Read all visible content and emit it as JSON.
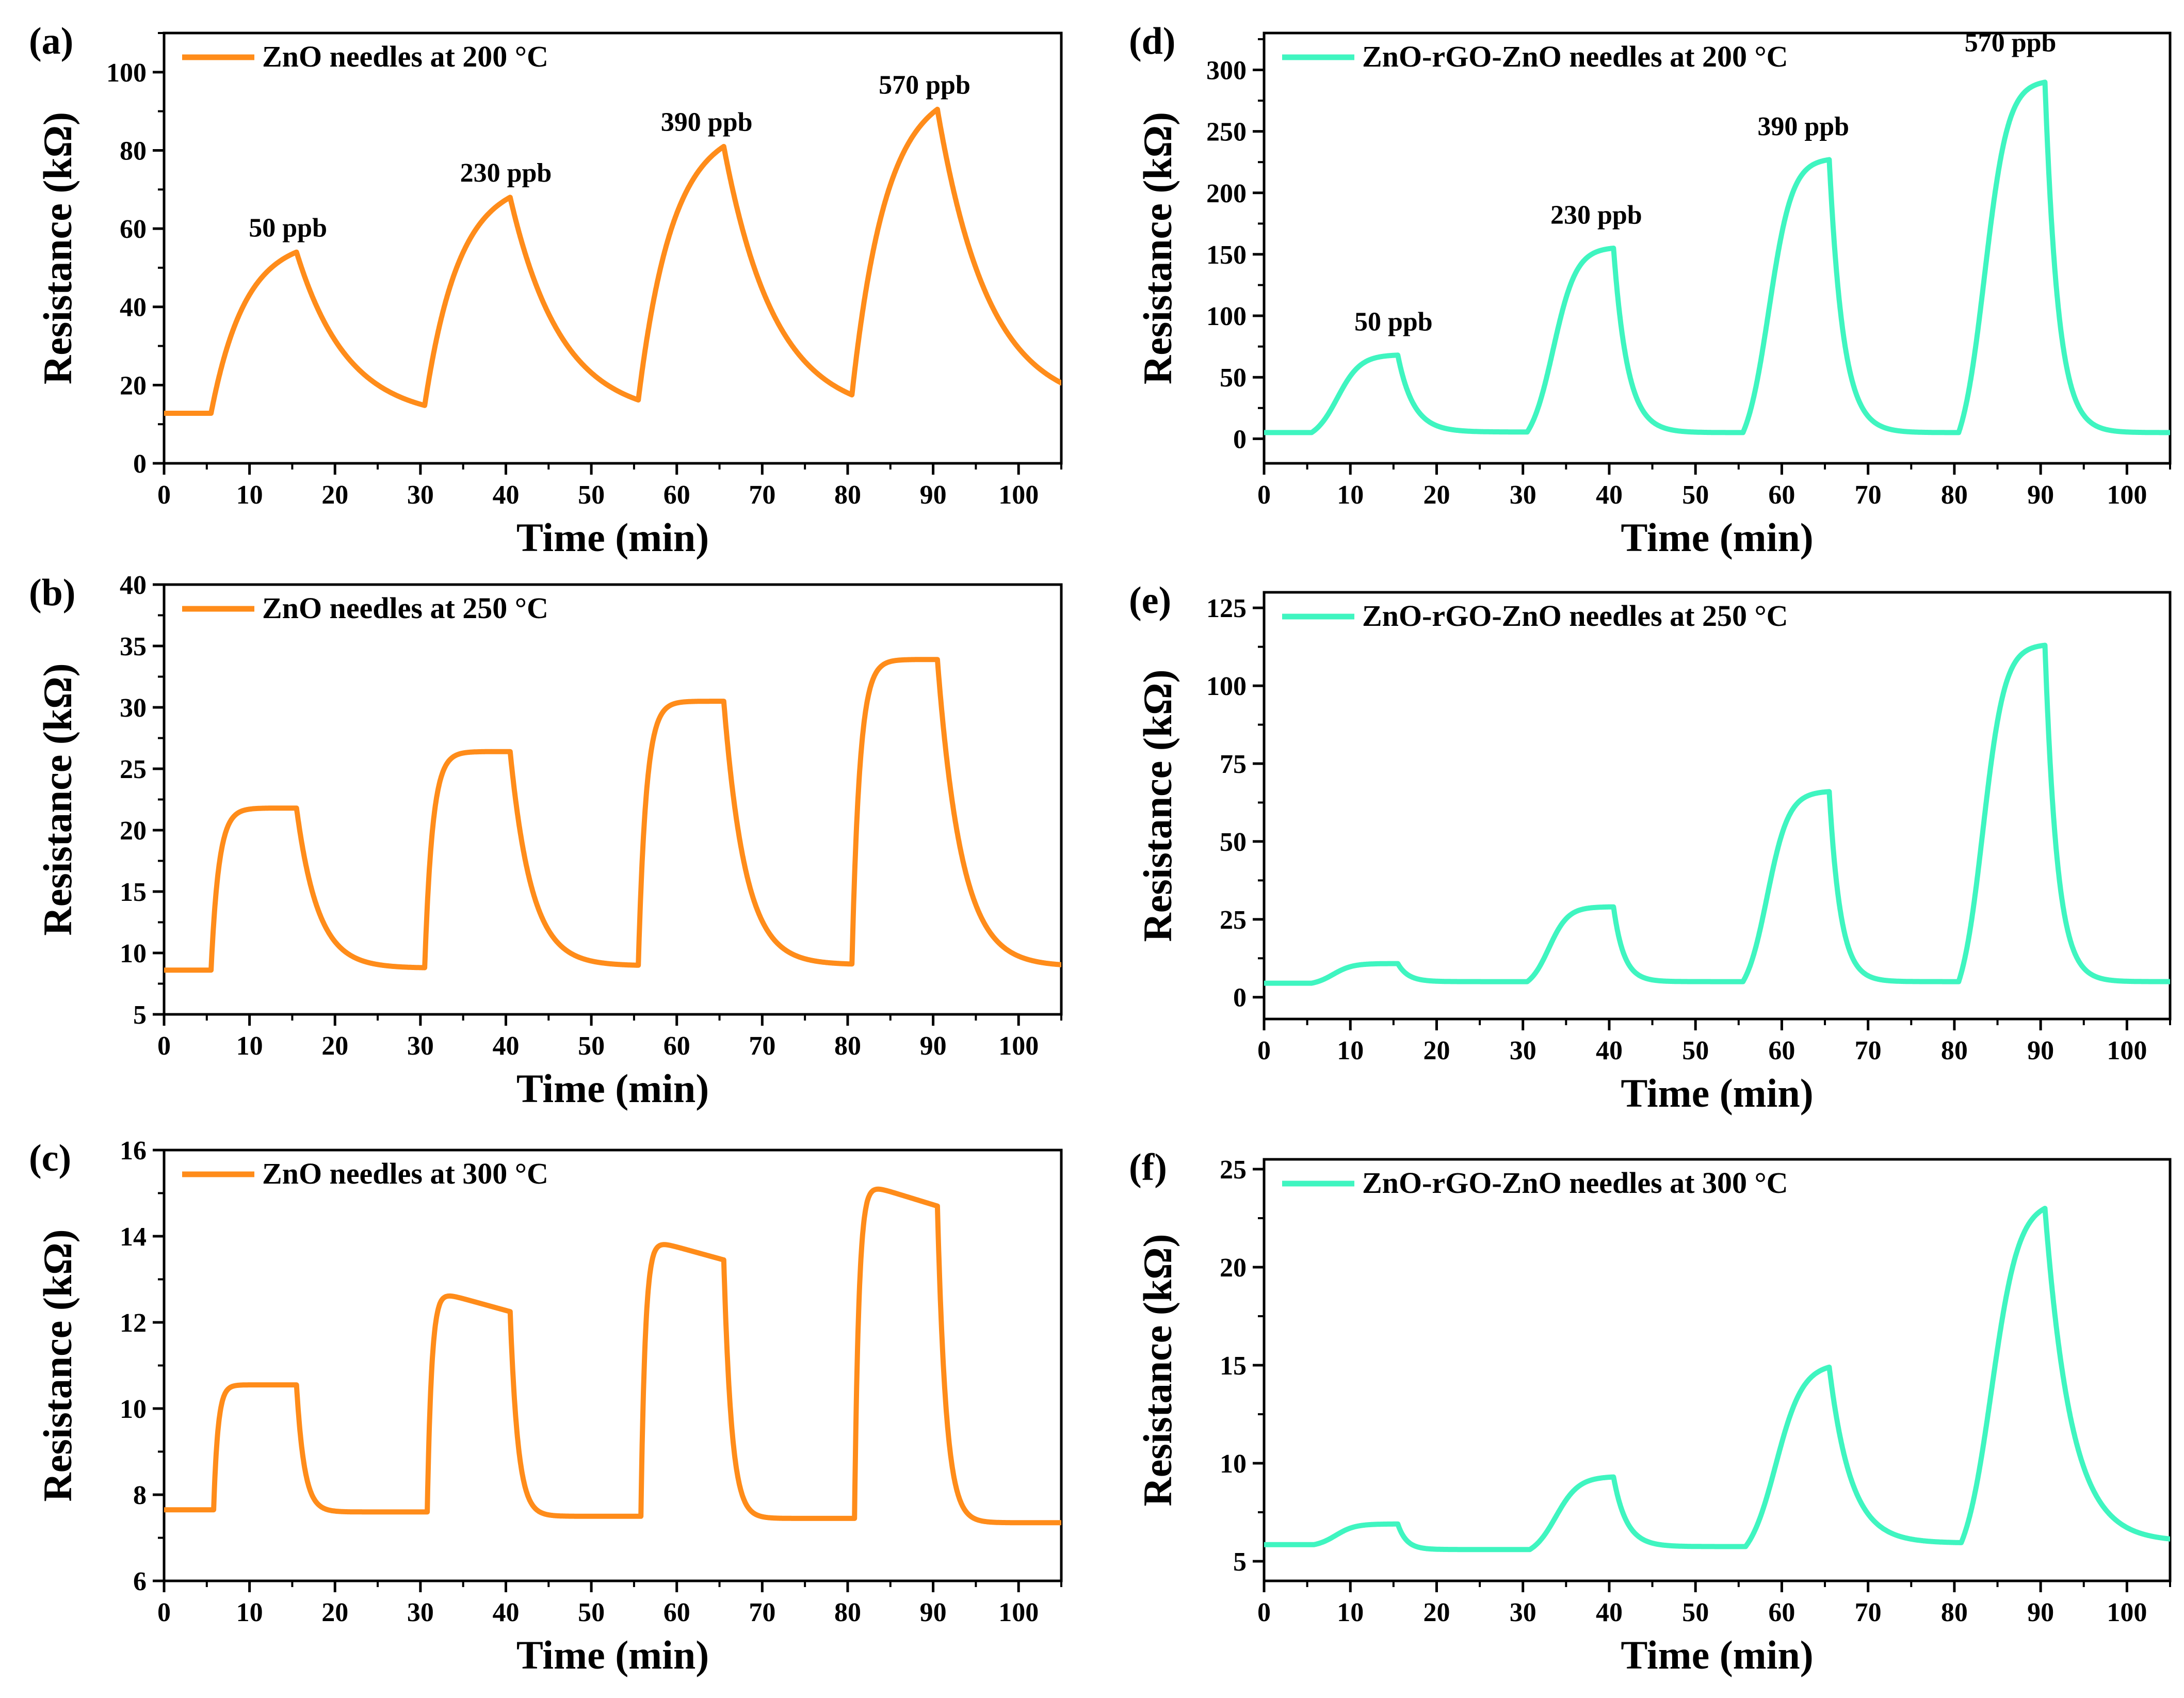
{
  "colors": {
    "zno": "#ff8c1a",
    "rgo": "#3ff5c0"
  },
  "chart_data": [
    {
      "type": "line",
      "panel_label": "(a)",
      "legend": "ZnO needles at 200 °C",
      "color": "#ff8c1a",
      "xlabel": "Time (min)",
      "ylabel": "Resistance (kΩ)",
      "xlim": [
        0,
        105
      ],
      "ylim": [
        0,
        110
      ],
      "xticks": [
        0,
        10,
        20,
        30,
        40,
        50,
        60,
        70,
        80,
        90,
        100
      ],
      "yticks": [
        0,
        20,
        40,
        60,
        80,
        100
      ],
      "baseline": 12.8,
      "pulses": [
        {
          "on": 5.5,
          "off": 15.5,
          "start": 12.8,
          "peak": 54,
          "shape": "exp",
          "tauRise": 4,
          "tauFall": 6,
          "end": 14.8
        },
        {
          "on": 30.5,
          "off": 40.5,
          "start": 14.8,
          "peak": 68,
          "shape": "exp",
          "tauRise": 4,
          "tauFall": 6,
          "end": 16.2
        },
        {
          "on": 55.5,
          "off": 65.5,
          "start": 16.2,
          "peak": 81,
          "shape": "exp",
          "tauRise": 4,
          "tauFall": 6,
          "end": 17.5
        },
        {
          "on": 80.5,
          "off": 90.5,
          "start": 17.5,
          "peak": 90.5,
          "shape": "exp",
          "tauRise": 4,
          "tauFall": 6,
          "end": 19.5
        }
      ],
      "end_time": 105,
      "annotations": [
        {
          "text": "50 ppb",
          "x": 14.5,
          "y": 58
        },
        {
          "text": "230 ppb",
          "x": 40,
          "y": 72
        },
        {
          "text": "390 ppb",
          "x": 63.5,
          "y": 85
        },
        {
          "text": "570 ppb",
          "x": 89,
          "y": 94.5
        }
      ]
    },
    {
      "type": "line",
      "panel_label": "(b)",
      "legend": "ZnO needles at 250 °C",
      "color": "#ff8c1a",
      "xlabel": "Time (min)",
      "ylabel": "Resistance (kΩ)",
      "xlim": [
        0,
        105
      ],
      "ylim": [
        5,
        40
      ],
      "xticks": [
        0,
        10,
        20,
        30,
        40,
        50,
        60,
        70,
        80,
        90,
        100
      ],
      "yticks": [
        5,
        10,
        15,
        20,
        25,
        30,
        35,
        40
      ],
      "baseline": 8.6,
      "pulses": [
        {
          "on": 5.5,
          "off": 15.5,
          "start": 8.6,
          "peak": 21.8,
          "shape": "plateau",
          "tauRise": 0.9,
          "tauFall": 2.5,
          "end": 8.8
        },
        {
          "on": 30.5,
          "off": 40.5,
          "start": 8.8,
          "peak": 26.4,
          "shape": "plateau",
          "tauRise": 0.9,
          "tauFall": 2.5,
          "end": 9.0
        },
        {
          "on": 55.5,
          "off": 65.5,
          "start": 9.0,
          "peak": 30.5,
          "shape": "plateau",
          "tauRise": 0.9,
          "tauFall": 2.5,
          "end": 9.1
        },
        {
          "on": 80.5,
          "off": 90.5,
          "start": 9.1,
          "peak": 33.9,
          "shape": "plateau",
          "tauRise": 0.9,
          "tauFall": 2.8,
          "end": 9.0
        }
      ],
      "end_time": 105,
      "annotations": []
    },
    {
      "type": "line",
      "panel_label": "(c)",
      "legend": "ZnO needles at 300 °C",
      "color": "#ff8c1a",
      "xlabel": "Time (min)",
      "ylabel": "Resistance (kΩ)",
      "xlim": [
        0,
        105
      ],
      "ylim": [
        6,
        16
      ],
      "xticks": [
        0,
        10,
        20,
        30,
        40,
        50,
        60,
        70,
        80,
        90,
        100
      ],
      "yticks": [
        6,
        8,
        10,
        12,
        14,
        16
      ],
      "baseline": 7.65,
      "pulses": [
        {
          "on": 5.8,
          "off": 15.5,
          "start": 7.65,
          "peak": 10.55,
          "shape": "plateau",
          "tauRise": 0.5,
          "tauFall": 0.9,
          "end": 7.6
        },
        {
          "on": 30.8,
          "off": 40.5,
          "start": 7.6,
          "peak": 12.7,
          "peakEnd": 12.25,
          "shape": "plateau",
          "tauRise": 0.5,
          "tauFall": 0.9,
          "end": 7.5
        },
        {
          "on": 55.8,
          "off": 65.5,
          "start": 7.5,
          "peak": 13.9,
          "peakEnd": 13.45,
          "shape": "plateau",
          "tauRise": 0.5,
          "tauFall": 0.9,
          "end": 7.45
        },
        {
          "on": 80.8,
          "off": 90.5,
          "start": 7.45,
          "peak": 15.2,
          "peakEnd": 14.7,
          "shape": "plateau",
          "tauRise": 0.5,
          "tauFall": 1.0,
          "end": 7.35
        }
      ],
      "end_time": 105,
      "annotations": []
    },
    {
      "type": "line",
      "panel_label": "(d)",
      "legend": "ZnO-rGO-ZnO needles at 200 °C",
      "color": "#3ff5c0",
      "xlabel": "Time (min)",
      "ylabel": "Resistance (kΩ)",
      "xlim": [
        0,
        105
      ],
      "ylim": [
        -20,
        330
      ],
      "xticks": [
        0,
        10,
        20,
        30,
        40,
        50,
        60,
        70,
        80,
        90,
        100
      ],
      "yticks": [
        0,
        50,
        100,
        150,
        200,
        250,
        300
      ],
      "baseline": 5,
      "pulses": [
        {
          "on": 5.5,
          "off": 15.5,
          "start": 5,
          "peak": 68,
          "shape": "sigmoid",
          "tauRise": 3,
          "tauFall": 1.8,
          "end": 5.5
        },
        {
          "on": 30.5,
          "off": 40.5,
          "start": 5.5,
          "peak": 155,
          "shape": "sigmoid",
          "tauRise": 3,
          "tauFall": 1.6,
          "end": 5
        },
        {
          "on": 55.5,
          "off": 65.5,
          "start": 5,
          "peak": 227,
          "shape": "sigmoid",
          "tauRise": 3,
          "tauFall": 1.6,
          "end": 5
        },
        {
          "on": 80.5,
          "off": 90.5,
          "start": 5,
          "peak": 290,
          "shape": "sigmoid",
          "tauRise": 3,
          "tauFall": 1.5,
          "end": 5
        }
      ],
      "end_time": 105,
      "annotations": [
        {
          "text": "50 ppb",
          "x": 15,
          "y": 88
        },
        {
          "text": "230 ppb",
          "x": 38.5,
          "y": 175
        },
        {
          "text": "390 ppb",
          "x": 62.5,
          "y": 247
        },
        {
          "text": "570 ppb",
          "x": 86.5,
          "y": 315
        }
      ]
    },
    {
      "type": "line",
      "panel_label": "(e)",
      "legend": "ZnO-rGO-ZnO needles at 250 °C",
      "color": "#3ff5c0",
      "xlabel": "Time (min)",
      "ylabel": "Resistance (kΩ)",
      "xlim": [
        0,
        105
      ],
      "ylim": [
        -7,
        130
      ],
      "xticks": [
        0,
        10,
        20,
        30,
        40,
        50,
        60,
        70,
        80,
        90,
        100
      ],
      "yticks": [
        0,
        25,
        50,
        75,
        100,
        125
      ],
      "baseline": 4.5,
      "pulses": [
        {
          "on": 5.5,
          "off": 15.5,
          "start": 4.5,
          "peak": 10.8,
          "shape": "sigmoid",
          "tauRise": 2.5,
          "tauFall": 1.2,
          "end": 5
        },
        {
          "on": 30.5,
          "off": 40.5,
          "start": 5,
          "peak": 29,
          "shape": "sigmoid",
          "tauRise": 2.5,
          "tauFall": 1.2,
          "end": 5
        },
        {
          "on": 55.5,
          "off": 65.5,
          "start": 5,
          "peak": 66,
          "shape": "sigmoid",
          "tauRise": 2.8,
          "tauFall": 1.3,
          "end": 5
        },
        {
          "on": 80.5,
          "off": 90.5,
          "start": 5,
          "peak": 113,
          "shape": "sigmoid",
          "tauRise": 2.8,
          "tauFall": 1.4,
          "end": 5
        }
      ],
      "end_time": 105,
      "annotations": []
    },
    {
      "type": "line",
      "panel_label": "(f)",
      "legend": "ZnO-rGO-ZnO needles at 300 °C",
      "color": "#3ff5c0",
      "xlabel": "Time (min)",
      "ylabel": "Resistance (kΩ)",
      "xlim": [
        0,
        105
      ],
      "ylim": [
        4,
        25.5
      ],
      "xticks": [
        0,
        10,
        20,
        30,
        40,
        50,
        60,
        70,
        80,
        90,
        100
      ],
      "yticks": [
        5,
        10,
        15,
        20,
        25
      ],
      "baseline": 5.85,
      "pulses": [
        {
          "on": 5.8,
          "off": 15.5,
          "start": 5.85,
          "peak": 6.9,
          "shape": "sigmoid",
          "tauRise": 2.5,
          "tauFall": 1.0,
          "end": 5.6
        },
        {
          "on": 30.8,
          "off": 40.5,
          "start": 5.6,
          "peak": 9.3,
          "shape": "sigmoid",
          "tauRise": 3,
          "tauFall": 1.5,
          "end": 5.75
        },
        {
          "on": 55.8,
          "off": 65.5,
          "start": 5.75,
          "peak": 14.9,
          "shape": "sigmoid",
          "tauRise": 3.5,
          "tauFall": 2.5,
          "end": 5.95
        },
        {
          "on": 80.8,
          "off": 90.5,
          "start": 5.95,
          "peak": 23,
          "shape": "sigmoid",
          "tauRise": 3.5,
          "tauFall": 3.0,
          "end": 6.1
        }
      ],
      "end_time": 105,
      "annotations": []
    }
  ]
}
